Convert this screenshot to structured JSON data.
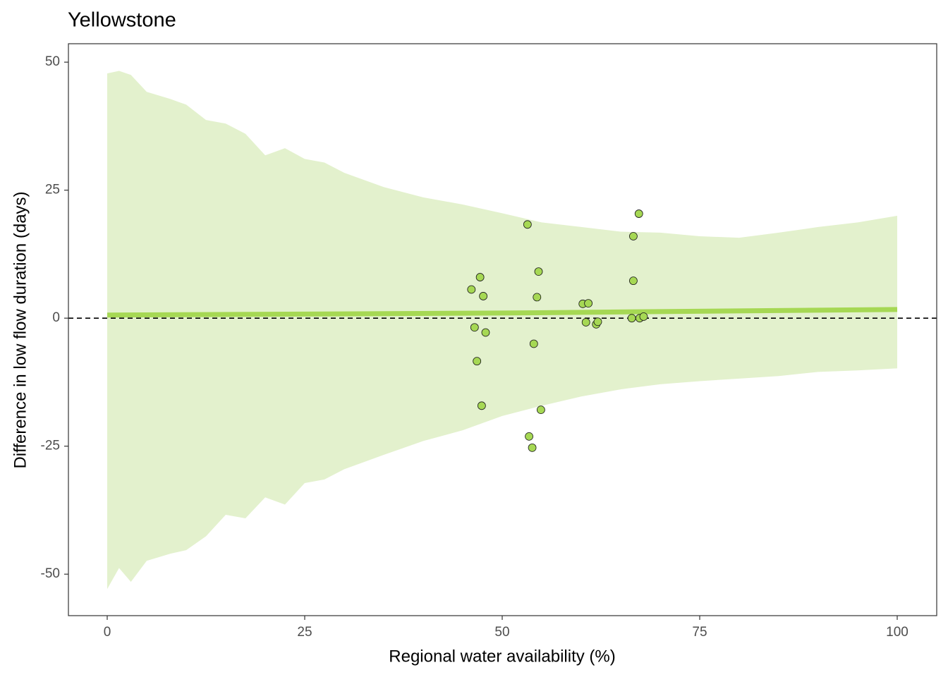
{
  "chart_data": {
    "type": "scatter",
    "title": "Yellowstone",
    "x_label": "Regional water availability (%)",
    "y_label": "Difference in low flow duration (days)",
    "xlim": [
      -4.91,
      105.0
    ],
    "ylim": [
      -58.1,
      53.6
    ],
    "xticks": [
      0,
      25,
      50,
      75,
      100
    ],
    "yticks": [
      -50,
      -25,
      0,
      25,
      50
    ],
    "reference_line": 0,
    "band": {
      "color": "#e3f1cd",
      "x": [
        0,
        1.5,
        3,
        5,
        8,
        10,
        12.5,
        15,
        17.5,
        20,
        22.5,
        25,
        27.5,
        30,
        35,
        40,
        45,
        50,
        55,
        60,
        65,
        70,
        75,
        80,
        85,
        90,
        95,
        100
      ],
      "upper": [
        47.8,
        48.3,
        47.5,
        44.2,
        42.8,
        41.7,
        38.7,
        38,
        36,
        31.8,
        33.2,
        31.1,
        30.4,
        28.4,
        25.6,
        23.6,
        22.2,
        20.5,
        18.7,
        17.8,
        16.9,
        16.7,
        16,
        15.7,
        16.7,
        17.8,
        18.7,
        20
      ],
      "lower": [
        -52.9,
        -48.8,
        -51.5,
        -47.4,
        -46,
        -45.3,
        -42.6,
        -38.4,
        -39.1,
        -35,
        -36.4,
        -32.2,
        -31.5,
        -29.5,
        -26.7,
        -24,
        -21.9,
        -19.1,
        -17.1,
        -15.3,
        -13.9,
        -12.9,
        -12.3,
        -11.8,
        -11.3,
        -10.5,
        -10.2,
        -9.8
      ]
    },
    "fit": {
      "color": "#a6d854",
      "x": [
        0,
        50,
        100
      ],
      "values": [
        0.6,
        1.0,
        1.7
      ]
    },
    "points": {
      "color": "#a6d854",
      "x": [
        46.1,
        47.2,
        47.6,
        46.5,
        47.9,
        46.8,
        47.4,
        53.2,
        54.6,
        54.4,
        54.0,
        54.9,
        53.4,
        53.8,
        60.2,
        60.9,
        60.6,
        61.9,
        62.1,
        67.3,
        66.6,
        66.6,
        66.4,
        67.4,
        67.9
      ],
      "values": [
        5.6,
        8.0,
        4.3,
        -1.8,
        -2.8,
        -8.4,
        -17.1,
        18.3,
        9.1,
        4.1,
        -5.0,
        -17.9,
        -23.1,
        -25.3,
        2.8,
        2.9,
        -0.8,
        -1.2,
        -0.7,
        20.4,
        16.0,
        7.3,
        0,
        0,
        0.3
      ]
    }
  }
}
